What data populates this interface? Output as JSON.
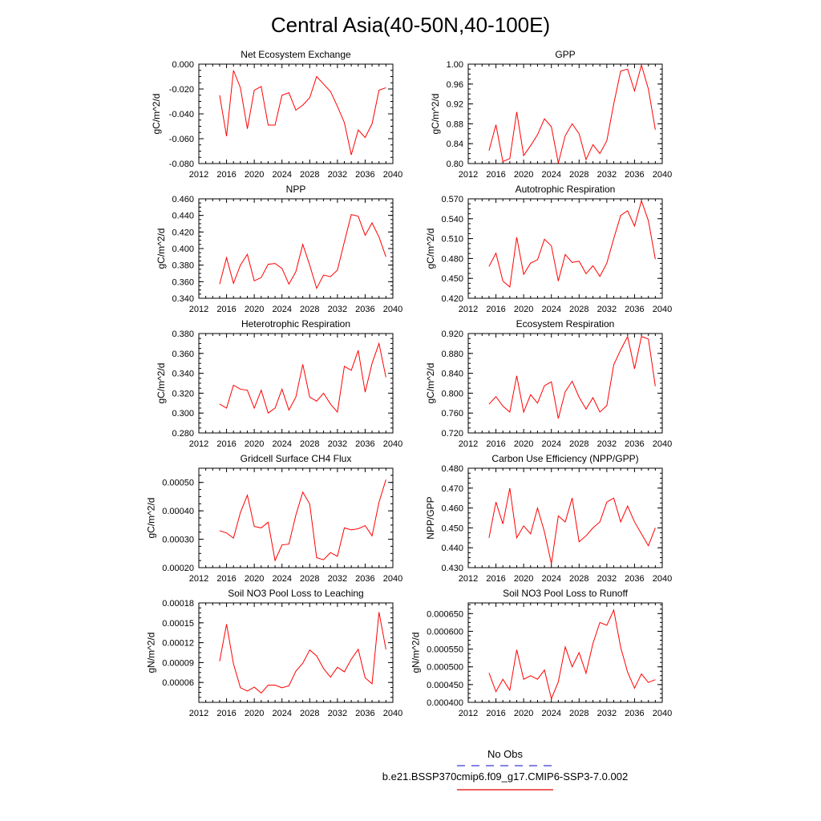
{
  "title": "Central Asia(40-50N,40-100E)",
  "legend": {
    "obs_label": "No Obs",
    "obs_color": "#3b3bd6",
    "model_label": "b.e21.BSSP370cmip6.f09_g17.CMIP6-SSP3-7.0.002",
    "model_color": "#e00000"
  },
  "chart_data": [
    {
      "type": "line",
      "title": "Net Ecosystem Exchange",
      "ylabel": "gC/m^2/d",
      "xlim": [
        2012,
        2040
      ],
      "xticks": [
        "2012",
        "2016",
        "2020",
        "2024",
        "2028",
        "2032",
        "2036",
        "2040"
      ],
      "ylim": [
        -0.08,
        0.0
      ],
      "yticks": [
        "-0.080",
        "-0.060",
        "-0.040",
        "-0.020",
        "0.000"
      ],
      "x": [
        2015,
        2016,
        2017,
        2018,
        2019,
        2020,
        2021,
        2022,
        2023,
        2024,
        2025,
        2026,
        2027,
        2028,
        2029,
        2030,
        2031,
        2032,
        2033,
        2034,
        2035,
        2036,
        2037,
        2038,
        2039
      ],
      "values": [
        -0.025,
        -0.058,
        -0.005,
        -0.019,
        -0.052,
        -0.021,
        -0.018,
        -0.049,
        -0.049,
        -0.025,
        -0.023,
        -0.037,
        -0.033,
        -0.027,
        -0.01,
        -0.016,
        -0.022,
        -0.034,
        -0.047,
        -0.073,
        -0.053,
        -0.059,
        -0.048,
        -0.021,
        -0.019
      ]
    },
    {
      "type": "line",
      "title": "GPP",
      "ylabel": "gC/m^2/d",
      "xlim": [
        2012,
        2040
      ],
      "xticks": [
        "2012",
        "2016",
        "2020",
        "2024",
        "2028",
        "2032",
        "2036",
        "2040"
      ],
      "ylim": [
        0.8,
        1.0
      ],
      "yticks": [
        "0.80",
        "0.84",
        "0.88",
        "0.92",
        "0.96",
        "1.00"
      ],
      "x": [
        2015,
        2016,
        2017,
        2018,
        2019,
        2020,
        2021,
        2022,
        2023,
        2024,
        2025,
        2026,
        2027,
        2028,
        2029,
        2030,
        2031,
        2032,
        2033,
        2034,
        2035,
        2036,
        2037,
        2038,
        2039
      ],
      "values": [
        0.826,
        0.878,
        0.804,
        0.81,
        0.904,
        0.816,
        0.836,
        0.858,
        0.89,
        0.874,
        0.801,
        0.856,
        0.88,
        0.86,
        0.808,
        0.838,
        0.82,
        0.846,
        0.92,
        0.986,
        0.99,
        0.946,
        0.998,
        0.95,
        0.868
      ]
    },
    {
      "type": "line",
      "title": "NPP",
      "ylabel": "gC/m^2/d",
      "xlim": [
        2012,
        2040
      ],
      "xticks": [
        "2012",
        "2016",
        "2020",
        "2024",
        "2028",
        "2032",
        "2036",
        "2040"
      ],
      "ylim": [
        0.34,
        0.46
      ],
      "yticks": [
        "0.340",
        "0.360",
        "0.380",
        "0.400",
        "0.420",
        "0.440",
        "0.460"
      ],
      "x": [
        2015,
        2016,
        2017,
        2018,
        2019,
        2020,
        2021,
        2022,
        2023,
        2024,
        2025,
        2026,
        2027,
        2028,
        2029,
        2030,
        2031,
        2032,
        2033,
        2034,
        2035,
        2036,
        2037,
        2038,
        2039
      ],
      "values": [
        0.357,
        0.389,
        0.358,
        0.38,
        0.393,
        0.361,
        0.365,
        0.381,
        0.382,
        0.376,
        0.357,
        0.372,
        0.405,
        0.38,
        0.352,
        0.368,
        0.366,
        0.374,
        0.408,
        0.441,
        0.439,
        0.416,
        0.431,
        0.414,
        0.39
      ]
    },
    {
      "type": "line",
      "title": "Autotrophic Respiration",
      "ylabel": "gC/m^2/d",
      "xlim": [
        2012,
        2040
      ],
      "xticks": [
        "2012",
        "2016",
        "2020",
        "2024",
        "2028",
        "2032",
        "2036",
        "2040"
      ],
      "ylim": [
        0.42,
        0.57
      ],
      "yticks": [
        "0.420",
        "0.450",
        "0.480",
        "0.510",
        "0.540",
        "0.570"
      ],
      "x": [
        2015,
        2016,
        2017,
        2018,
        2019,
        2020,
        2021,
        2022,
        2023,
        2024,
        2025,
        2026,
        2027,
        2028,
        2029,
        2030,
        2031,
        2032,
        2033,
        2034,
        2035,
        2036,
        2037,
        2038,
        2039
      ],
      "values": [
        0.468,
        0.488,
        0.446,
        0.437,
        0.512,
        0.456,
        0.473,
        0.478,
        0.509,
        0.499,
        0.446,
        0.486,
        0.474,
        0.476,
        0.457,
        0.469,
        0.453,
        0.473,
        0.51,
        0.545,
        0.552,
        0.529,
        0.567,
        0.537,
        0.479
      ]
    },
    {
      "type": "line",
      "title": "Heterotrophic Respiration",
      "ylabel": "gC/m^2/d",
      "xlim": [
        2012,
        2040
      ],
      "xticks": [
        "2012",
        "2016",
        "2020",
        "2024",
        "2028",
        "2032",
        "2036",
        "2040"
      ],
      "ylim": [
        0.28,
        0.38
      ],
      "yticks": [
        "0.280",
        "0.300",
        "0.320",
        "0.340",
        "0.360",
        "0.380"
      ],
      "x": [
        2015,
        2016,
        2017,
        2018,
        2019,
        2020,
        2021,
        2022,
        2023,
        2024,
        2025,
        2026,
        2027,
        2028,
        2029,
        2030,
        2031,
        2032,
        2033,
        2034,
        2035,
        2036,
        2037,
        2038,
        2039
      ],
      "values": [
        0.309,
        0.305,
        0.328,
        0.324,
        0.323,
        0.305,
        0.323,
        0.3,
        0.305,
        0.324,
        0.303,
        0.316,
        0.349,
        0.316,
        0.312,
        0.32,
        0.309,
        0.301,
        0.347,
        0.343,
        0.363,
        0.321,
        0.35,
        0.37,
        0.336
      ]
    },
    {
      "type": "line",
      "title": "Ecosystem Respiration",
      "ylabel": "gC/m^2/d",
      "xlim": [
        2012,
        2040
      ],
      "xticks": [
        "2012",
        "2016",
        "2020",
        "2024",
        "2028",
        "2032",
        "2036",
        "2040"
      ],
      "ylim": [
        0.72,
        0.92
      ],
      "yticks": [
        "0.720",
        "0.760",
        "0.800",
        "0.840",
        "0.880",
        "0.920"
      ],
      "x": [
        2015,
        2016,
        2017,
        2018,
        2019,
        2020,
        2021,
        2022,
        2023,
        2024,
        2025,
        2026,
        2027,
        2028,
        2029,
        2030,
        2031,
        2032,
        2033,
        2034,
        2035,
        2036,
        2037,
        2038,
        2039
      ],
      "values": [
        0.778,
        0.793,
        0.774,
        0.762,
        0.835,
        0.762,
        0.797,
        0.78,
        0.815,
        0.823,
        0.749,
        0.803,
        0.824,
        0.792,
        0.768,
        0.791,
        0.762,
        0.775,
        0.857,
        0.887,
        0.914,
        0.849,
        0.914,
        0.909,
        0.814
      ]
    },
    {
      "type": "line",
      "title": "Gridcell Surface CH4 Flux",
      "ylabel": "gC/m^2/d",
      "xlim": [
        2012,
        2040
      ],
      "xticks": [
        "2012",
        "2016",
        "2020",
        "2024",
        "2028",
        "2032",
        "2036",
        "2040"
      ],
      "ylim": [
        0.0002,
        0.00055
      ],
      "yticks": [
        "0.00020",
        "0.00030",
        "0.00040",
        "0.00050"
      ],
      "x": [
        2015,
        2016,
        2017,
        2018,
        2019,
        2020,
        2021,
        2022,
        2023,
        2024,
        2025,
        2026,
        2027,
        2028,
        2029,
        2030,
        2031,
        2032,
        2033,
        2034,
        2035,
        2036,
        2037,
        2038,
        2039
      ],
      "values": [
        0.00033,
        0.000322,
        0.000304,
        0.000394,
        0.000455,
        0.000345,
        0.00034,
        0.00036,
        0.000225,
        0.00028,
        0.000283,
        0.000385,
        0.000466,
        0.000424,
        0.000235,
        0.000228,
        0.000253,
        0.00024,
        0.00034,
        0.000333,
        0.000337,
        0.000348,
        0.000312,
        0.00043,
        0.00051
      ]
    },
    {
      "type": "line",
      "title": "Carbon Use Efficiency (NPP/GPP)",
      "ylabel": "NPP/GPP",
      "xlim": [
        2012,
        2040
      ],
      "xticks": [
        "2012",
        "2016",
        "2020",
        "2024",
        "2028",
        "2032",
        "2036",
        "2040"
      ],
      "ylim": [
        0.43,
        0.48
      ],
      "yticks": [
        "0.430",
        "0.440",
        "0.450",
        "0.460",
        "0.470",
        "0.480"
      ],
      "x": [
        2015,
        2016,
        2017,
        2018,
        2019,
        2020,
        2021,
        2022,
        2023,
        2024,
        2025,
        2026,
        2027,
        2028,
        2029,
        2030,
        2031,
        2032,
        2033,
        2034,
        2035,
        2036,
        2037,
        2038,
        2039
      ],
      "values": [
        0.445,
        0.463,
        0.452,
        0.47,
        0.445,
        0.451,
        0.447,
        0.46,
        0.448,
        0.432,
        0.456,
        0.453,
        0.465,
        0.443,
        0.446,
        0.45,
        0.453,
        0.463,
        0.465,
        0.453,
        0.461,
        0.453,
        0.447,
        0.441,
        0.45
      ]
    },
    {
      "type": "line",
      "title": "Soil NO3 Pool Loss to Leaching",
      "ylabel": "gN/m^2/d",
      "xlim": [
        2012,
        2040
      ],
      "xticks": [
        "2012",
        "2016",
        "2020",
        "2024",
        "2028",
        "2032",
        "2036",
        "2040"
      ],
      "ylim": [
        3e-05,
        0.00018
      ],
      "yticks": [
        "0.00006",
        "0.00009",
        "0.00012",
        "0.00015",
        "0.00018"
      ],
      "x": [
        2015,
        2016,
        2017,
        2018,
        2019,
        2020,
        2021,
        2022,
        2023,
        2024,
        2025,
        2026,
        2027,
        2028,
        2029,
        2030,
        2031,
        2032,
        2033,
        2034,
        2035,
        2036,
        2037,
        2038,
        2039
      ],
      "values": [
        9.2e-05,
        0.000148,
        8.8e-05,
        5.2e-05,
        4.7e-05,
        5.3e-05,
        4.4e-05,
        5.6e-05,
        5.6e-05,
        5.2e-05,
        5.5e-05,
        7.7e-05,
        8.9e-05,
        0.000109,
        0.0001,
        8.1e-05,
        6.8e-05,
        8.3e-05,
        7.6e-05,
        9.5e-05,
        0.00011,
        6.7e-05,
        5.8e-05,
        0.000166,
        0.00011
      ]
    },
    {
      "type": "line",
      "title": "Soil NO3 Pool Loss to Runoff",
      "ylabel": "gN/m^2/d",
      "xlim": [
        2012,
        2040
      ],
      "xticks": [
        "2012",
        "2016",
        "2020",
        "2024",
        "2028",
        "2032",
        "2036",
        "2040"
      ],
      "ylim": [
        0.0004,
        0.00068
      ],
      "yticks": [
        "0.000400",
        "0.000450",
        "0.000500",
        "0.000550",
        "0.000600",
        "0.000650"
      ],
      "x": [
        2015,
        2016,
        2017,
        2018,
        2019,
        2020,
        2021,
        2022,
        2023,
        2024,
        2025,
        2026,
        2027,
        2028,
        2029,
        2030,
        2031,
        2032,
        2033,
        2034,
        2035,
        2036,
        2037,
        2038,
        2039
      ],
      "values": [
        0.000483,
        0.00043,
        0.000465,
        0.000434,
        0.000548,
        0.000465,
        0.000475,
        0.000465,
        0.000491,
        0.00041,
        0.000458,
        0.000556,
        0.0005,
        0.00054,
        0.000482,
        0.000566,
        0.000625,
        0.000617,
        0.00066,
        0.000555,
        0.000485,
        0.00044,
        0.00048,
        0.000456,
        0.000464
      ]
    }
  ]
}
